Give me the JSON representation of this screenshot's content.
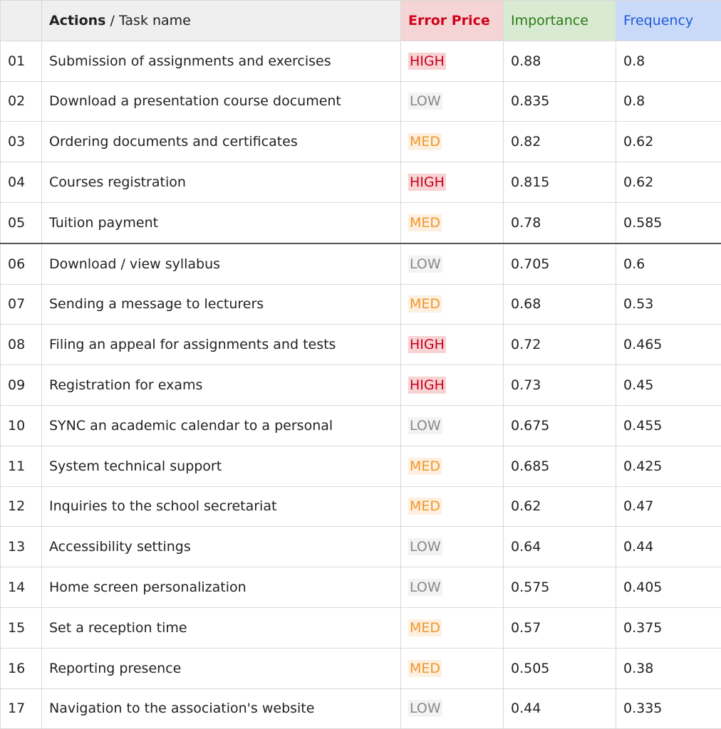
{
  "header": {
    "number": "",
    "task": {
      "bold": "Actions",
      "rest": "/ Task name"
    },
    "error": "Error Price",
    "importance": "Importance",
    "frequency": "Frequency"
  },
  "table": {
    "rows": [
      [
        "01",
        "Submission of assignments and exercises",
        "HIGH",
        0.88,
        0.8
      ],
      [
        "02",
        "Download a presentation course document",
        "LOW",
        0.835,
        0.8
      ],
      [
        "03",
        "Ordering documents and certificates",
        "MED",
        0.82,
        0.62
      ],
      [
        "04",
        "Courses registration",
        "HIGH",
        0.815,
        0.62
      ],
      [
        "05",
        "Tuition payment",
        "MED",
        0.78,
        0.585
      ],
      [
        "06",
        "Download / view syllabus",
        "LOW",
        0.705,
        0.6
      ],
      [
        "07",
        "Sending a message to lecturers",
        "MED",
        0.68,
        0.53
      ],
      [
        "08",
        "Filing an appeal for assignments and tests",
        "HIGH",
        0.72,
        0.465
      ],
      [
        "09",
        "Registration for exams",
        "HIGH",
        0.73,
        0.45
      ],
      [
        "10",
        "SYNC an academic calendar to a personal",
        "LOW",
        0.675,
        0.455
      ],
      [
        "11",
        "System technical support",
        "MED",
        0.685,
        0.425
      ],
      [
        "12",
        "Inquiries to the school secretariat",
        "MED",
        0.62,
        0.47
      ],
      [
        "13",
        "Accessibility settings",
        "LOW",
        0.64,
        0.44
      ],
      [
        "14",
        "Home screen personalization",
        "LOW",
        0.575,
        0.405
      ],
      [
        "15",
        "Set a reception time",
        "MED",
        0.57,
        0.375
      ],
      [
        "16",
        "Reporting presence",
        "MED",
        0.505,
        0.38
      ],
      [
        "17",
        "Navigation to the association's website",
        "LOW",
        0.44,
        0.335
      ]
    ]
  }
}
